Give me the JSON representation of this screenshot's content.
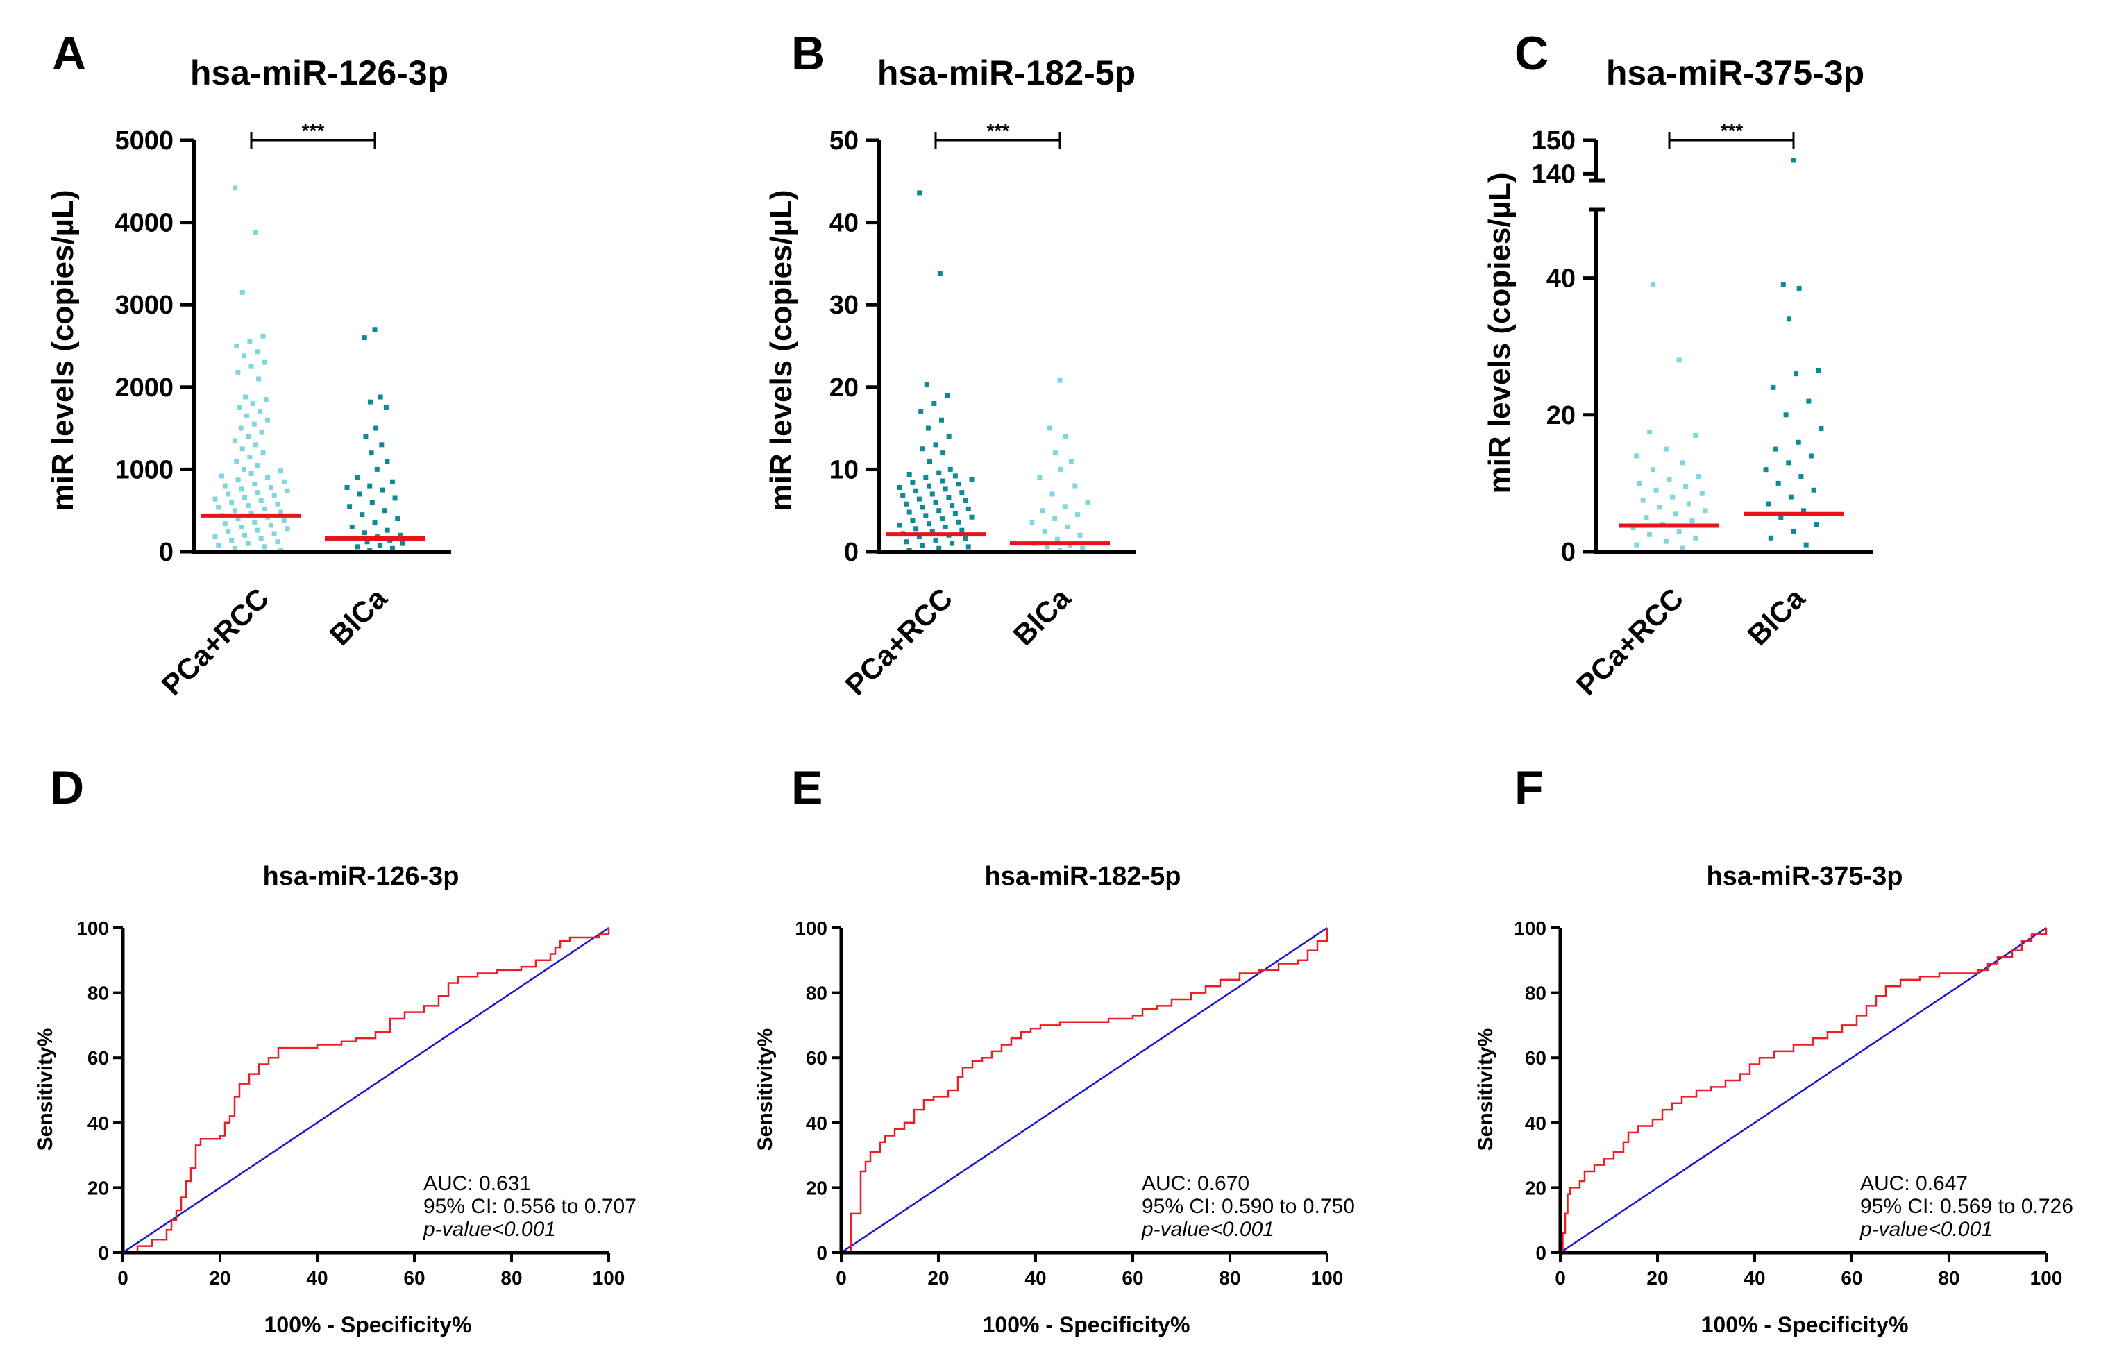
{
  "colors": {
    "light": "#7fd6df",
    "dark": "#0e8a96",
    "median": "#e8141c",
    "roc": "#ee1c25",
    "diag": "#1717cc",
    "axis": "#000000"
  },
  "chart_data": [
    {
      "panel": "A",
      "type": "scatter",
      "subtype": "dot-plot",
      "title": "hsa-miR-126-3p",
      "ylabel": "miR levels (copies/µL)",
      "ylim": [
        0,
        5000
      ],
      "yticks": [
        "0",
        "1000",
        "2000",
        "3000",
        "4000",
        "5000"
      ],
      "categories": [
        "PCa+RCC",
        "BlCa"
      ],
      "series": [
        {
          "name": "PCa+RCC",
          "color": "light",
          "median": 440,
          "values": [
            4420,
            3880,
            3150,
            2620,
            2560,
            2500,
            2430,
            2380,
            2300,
            2250,
            2180,
            2100,
            1880,
            1850,
            1800,
            1750,
            1700,
            1650,
            1600,
            1550,
            1500,
            1450,
            1400,
            1350,
            1300,
            1250,
            1200,
            1150,
            1100,
            1050,
            1000,
            980,
            950,
            920,
            900,
            870,
            850,
            820,
            800,
            780,
            760,
            740,
            720,
            700,
            680,
            660,
            640,
            620,
            600,
            580,
            560,
            540,
            520,
            500,
            480,
            460,
            440,
            420,
            400,
            380,
            360,
            340,
            320,
            300,
            280,
            260,
            240,
            220,
            200,
            180,
            160,
            140,
            120,
            100,
            80,
            60,
            40,
            20
          ]
        },
        {
          "name": "BlCa",
          "color": "dark",
          "median": 160,
          "values": [
            2700,
            2600,
            1880,
            1820,
            1750,
            1500,
            1400,
            1300,
            1200,
            1100,
            1000,
            900,
            850,
            800,
            780,
            750,
            700,
            650,
            600,
            550,
            500,
            450,
            400,
            350,
            300,
            260,
            230,
            200,
            180,
            160,
            140,
            120,
            100,
            80,
            60,
            40,
            20
          ]
        }
      ],
      "significance": "***"
    },
    {
      "panel": "B",
      "type": "scatter",
      "subtype": "dot-plot",
      "title": "hsa-miR-182-5p",
      "ylabel": "miR levels (copies/µL)",
      "ylim": [
        0,
        50
      ],
      "yticks": [
        "0",
        "10",
        "20",
        "30",
        "40",
        "50"
      ],
      "categories": [
        "PCa+RCC",
        "BlCa"
      ],
      "series": [
        {
          "name": "PCa+RCC",
          "color": "dark",
          "median": 2.1,
          "values": [
            43.6,
            33.8,
            20.3,
            19.0,
            18.0,
            17.0,
            16.0,
            15.0,
            14.0,
            13.0,
            12.5,
            12.0,
            11.0,
            10.0,
            9.6,
            9.4,
            9.2,
            9.0,
            8.8,
            8.6,
            8.4,
            8.2,
            8.0,
            7.8,
            7.6,
            7.4,
            7.2,
            7.0,
            6.8,
            6.6,
            6.4,
            6.2,
            6.0,
            5.8,
            5.6,
            5.4,
            5.2,
            5.0,
            4.8,
            4.6,
            4.4,
            4.2,
            4.0,
            3.8,
            3.6,
            3.4,
            3.2,
            3.0,
            2.8,
            2.6,
            2.4,
            2.2,
            2.0,
            1.8,
            1.6,
            1.4,
            1.2,
            1.0,
            0.8,
            0.6,
            0.4,
            0.2
          ]
        },
        {
          "name": "BlCa",
          "color": "light",
          "median": 1.0,
          "values": [
            20.8,
            15.0,
            14.0,
            12.0,
            11.0,
            10.0,
            9.0,
            8.0,
            7.0,
            6.0,
            5.5,
            5.0,
            4.5,
            4.0,
            3.5,
            3.0,
            2.5,
            2.0,
            1.5,
            1.0,
            0.8,
            0.6,
            0.4,
            0.2
          ]
        }
      ],
      "significance": "***"
    },
    {
      "panel": "C",
      "type": "scatter",
      "subtype": "dot-plot",
      "title": "hsa-miR-375-3p",
      "ylabel": "miR levels (copies/µL)",
      "ylim": [
        0,
        150
      ],
      "axis_break": [
        50,
        138
      ],
      "yticks": [
        "0",
        "20",
        "40",
        "140",
        "150"
      ],
      "categories": [
        "PCa+RCC",
        "BlCa"
      ],
      "series": [
        {
          "name": "PCa+RCC",
          "color": "light",
          "median": 3.8,
          "values": [
            39.0,
            28.0,
            17.5,
            17.0,
            15.0,
            14.0,
            13.0,
            12.0,
            11.0,
            10.5,
            10.0,
            9.5,
            9.0,
            8.5,
            8.0,
            7.5,
            7.0,
            6.5,
            6.0,
            5.5,
            5.0,
            4.5,
            4.0,
            3.5,
            3.0,
            2.5,
            2.0,
            1.5,
            1.0,
            0.5
          ]
        },
        {
          "name": "BlCa",
          "color": "dark",
          "median": 5.5,
          "values": [
            144.0,
            39.0,
            38.5,
            34.0,
            26.5,
            26.0,
            24.0,
            22.0,
            20.0,
            18.0,
            16.0,
            15.0,
            14.0,
            13.0,
            12.0,
            11.0,
            10.0,
            9.0,
            8.0,
            7.0,
            6.0,
            5.0,
            4.0,
            3.0,
            2.0,
            1.0
          ]
        }
      ],
      "significance": "***"
    },
    {
      "panel": "D",
      "type": "line",
      "subtype": "roc",
      "title": "hsa-miR-126-3p",
      "xlabel": "100% - Specificity%",
      "ylabel": "Sensitivity%",
      "xlim": [
        0,
        100
      ],
      "ylim": [
        0,
        100
      ],
      "ticks": [
        "0",
        "20",
        "40",
        "60",
        "80",
        "100"
      ],
      "roc": [
        [
          0,
          0
        ],
        [
          3,
          2
        ],
        [
          6,
          4
        ],
        [
          9,
          7
        ],
        [
          10,
          10
        ],
        [
          11,
          13
        ],
        [
          12,
          14
        ],
        [
          12,
          17
        ],
        [
          13,
          20
        ],
        [
          13,
          22
        ],
        [
          14,
          26
        ],
        [
          15,
          30
        ],
        [
          15,
          33
        ],
        [
          16,
          35
        ],
        [
          20,
          36
        ],
        [
          21,
          40
        ],
        [
          22,
          42
        ],
        [
          23,
          48
        ],
        [
          24,
          52
        ],
        [
          26,
          55
        ],
        [
          28,
          58
        ],
        [
          30,
          60
        ],
        [
          32,
          63
        ],
        [
          36,
          63
        ],
        [
          40,
          64
        ],
        [
          45,
          65
        ],
        [
          48,
          66
        ],
        [
          52,
          68
        ],
        [
          55,
          72
        ],
        [
          58,
          74
        ],
        [
          62,
          76
        ],
        [
          65,
          79
        ],
        [
          67,
          83
        ],
        [
          69,
          85
        ],
        [
          73,
          86
        ],
        [
          77,
          87
        ],
        [
          82,
          88
        ],
        [
          85,
          90
        ],
        [
          88,
          92
        ],
        [
          89,
          94
        ],
        [
          90,
          96
        ],
        [
          92,
          97
        ],
        [
          96,
          97
        ],
        [
          98,
          98
        ],
        [
          100,
          100
        ]
      ],
      "diagonal": [
        [
          0,
          0
        ],
        [
          100,
          100
        ]
      ],
      "auc_label": "AUC: 0.631",
      "ci_label": "95% CI: 0.556 to 0.707",
      "p_label": "p-value<0.001"
    },
    {
      "panel": "E",
      "type": "line",
      "subtype": "roc",
      "title": "hsa-miR-182-5p",
      "xlabel": "100% - Specificity%",
      "ylabel": "Sensitivity%",
      "xlim": [
        0,
        100
      ],
      "ylim": [
        0,
        100
      ],
      "ticks": [
        "0",
        "20",
        "40",
        "60",
        "80",
        "100"
      ],
      "roc": [
        [
          0,
          0
        ],
        [
          2,
          12
        ],
        [
          4,
          25
        ],
        [
          5,
          28
        ],
        [
          6,
          31
        ],
        [
          8,
          34
        ],
        [
          9,
          36
        ],
        [
          11,
          38
        ],
        [
          13,
          40
        ],
        [
          15,
          44
        ],
        [
          17,
          47
        ],
        [
          19,
          48
        ],
        [
          22,
          50
        ],
        [
          24,
          54
        ],
        [
          25,
          57
        ],
        [
          27,
          59
        ],
        [
          29,
          60
        ],
        [
          31,
          62
        ],
        [
          33,
          64
        ],
        [
          35,
          66
        ],
        [
          37,
          68
        ],
        [
          39,
          69
        ],
        [
          41,
          70
        ],
        [
          45,
          71
        ],
        [
          50,
          71
        ],
        [
          55,
          72
        ],
        [
          60,
          73
        ],
        [
          62,
          75
        ],
        [
          65,
          76
        ],
        [
          68,
          78
        ],
        [
          72,
          80
        ],
        [
          75,
          82
        ],
        [
          78,
          84
        ],
        [
          82,
          86
        ],
        [
          86,
          87
        ],
        [
          90,
          89
        ],
        [
          94,
          90
        ],
        [
          96,
          93
        ],
        [
          98,
          96
        ],
        [
          100,
          100
        ]
      ],
      "diagonal": [
        [
          0,
          0
        ],
        [
          100,
          100
        ]
      ],
      "auc_label": "AUC: 0.670",
      "ci_label": "95% CI: 0.590 to 0.750",
      "p_label": "p-value<0.001"
    },
    {
      "panel": "F",
      "type": "line",
      "subtype": "roc",
      "title": "hsa-miR-375-3p",
      "xlabel": "100% - Specificity%",
      "ylabel": "Sensitivity%",
      "xlim": [
        0,
        100
      ],
      "ylim": [
        0,
        100
      ],
      "ticks": [
        "0",
        "20",
        "40",
        "60",
        "80",
        "100"
      ],
      "roc": [
        [
          0,
          0
        ],
        [
          0.5,
          6
        ],
        [
          1,
          12
        ],
        [
          1.5,
          18
        ],
        [
          2,
          20
        ],
        [
          4,
          22
        ],
        [
          5,
          25
        ],
        [
          7,
          27
        ],
        [
          9,
          29
        ],
        [
          11,
          31
        ],
        [
          13,
          34
        ],
        [
          14,
          37
        ],
        [
          16,
          39
        ],
        [
          19,
          41
        ],
        [
          21,
          44
        ],
        [
          23,
          46
        ],
        [
          25,
          48
        ],
        [
          28,
          50
        ],
        [
          31,
          51
        ],
        [
          34,
          53
        ],
        [
          37,
          55
        ],
        [
          39,
          58
        ],
        [
          41,
          60
        ],
        [
          44,
          62
        ],
        [
          48,
          64
        ],
        [
          52,
          66
        ],
        [
          55,
          68
        ],
        [
          58,
          70
        ],
        [
          61,
          73
        ],
        [
          63,
          76
        ],
        [
          65,
          79
        ],
        [
          67,
          82
        ],
        [
          70,
          84
        ],
        [
          74,
          85
        ],
        [
          78,
          86
        ],
        [
          82,
          86
        ],
        [
          86,
          87
        ],
        [
          88,
          89
        ],
        [
          90,
          91
        ],
        [
          93,
          93
        ],
        [
          95,
          96
        ],
        [
          97,
          98
        ],
        [
          100,
          100
        ]
      ],
      "diagonal": [
        [
          0,
          0
        ],
        [
          100,
          100
        ]
      ],
      "auc_label": "AUC: 0.647",
      "ci_label": "95% CI: 0.569 to 0.726",
      "p_label": "p-value<0.001"
    }
  ]
}
